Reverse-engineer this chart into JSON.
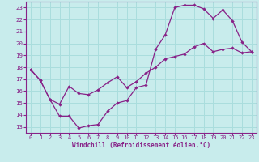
{
  "xlabel": "Windchill (Refroidissement éolien,°C)",
  "background_color": "#c8ecec",
  "line_color": "#882288",
  "grid_color": "#aadddd",
  "xlim": [
    -0.5,
    23.5
  ],
  "ylim": [
    12.5,
    23.5
  ],
  "xticks": [
    0,
    1,
    2,
    3,
    4,
    5,
    6,
    7,
    8,
    9,
    10,
    11,
    12,
    13,
    14,
    15,
    16,
    17,
    18,
    19,
    20,
    21,
    22,
    23
  ],
  "yticks": [
    13,
    14,
    15,
    16,
    17,
    18,
    19,
    20,
    21,
    22,
    23
  ],
  "line1_x": [
    0,
    1,
    2,
    3,
    4,
    5,
    6,
    7,
    8,
    9,
    10,
    11,
    12,
    13,
    14,
    15,
    16,
    17,
    18,
    19,
    20,
    21,
    22,
    23
  ],
  "line1_y": [
    17.8,
    16.9,
    15.3,
    13.9,
    13.9,
    12.9,
    13.1,
    13.2,
    14.3,
    15.0,
    15.2,
    16.3,
    16.5,
    19.5,
    20.7,
    23.0,
    23.2,
    23.2,
    22.9,
    22.1,
    22.8,
    21.9,
    20.1,
    19.3
  ],
  "line2_x": [
    0,
    1,
    2,
    3,
    4,
    5,
    6,
    7,
    8,
    9,
    10,
    11,
    12,
    13,
    14,
    15,
    16,
    17,
    18,
    19,
    20,
    21,
    22,
    23
  ],
  "line2_y": [
    17.8,
    16.9,
    15.3,
    14.9,
    16.4,
    15.8,
    15.7,
    16.1,
    16.7,
    17.2,
    16.3,
    16.8,
    17.5,
    18.0,
    18.7,
    18.9,
    19.1,
    19.7,
    20.0,
    19.3,
    19.5,
    19.6,
    19.2,
    19.3
  ],
  "tick_fontsize": 5.0,
  "xlabel_fontsize": 5.5,
  "marker_size": 2.2,
  "line_width": 0.9
}
